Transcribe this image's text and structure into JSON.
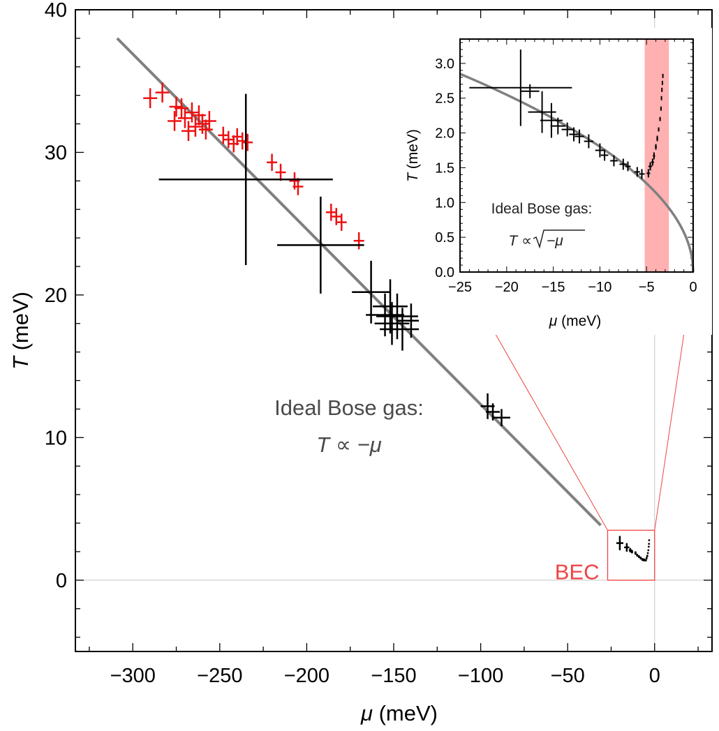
{
  "chart_data": [
    {
      "type": "scatter",
      "title": "",
      "xlabel": "μ (meV)",
      "ylabel": "T (meV)",
      "xlabel_symbol": "μ",
      "xlabel_unit": " (meV)",
      "ylabel_symbol": "T",
      "ylabel_unit": " (meV)",
      "xlim": [
        -333,
        33
      ],
      "ylim": [
        -5,
        40
      ],
      "x_ticks": [
        -300,
        -250,
        -200,
        -150,
        -100,
        -50,
        0
      ],
      "x_tick_labels": [
        "−300",
        "−250",
        "−200",
        "−150",
        "−100",
        "−50",
        "0"
      ],
      "y_ticks": [
        0,
        10,
        20,
        30,
        40
      ],
      "y_tick_labels": [
        "0",
        "10",
        "20",
        "30",
        "40"
      ],
      "grid": false,
      "colors": {
        "red_series": "#ee1111",
        "black_series": "#000000",
        "fit": "#808080",
        "bec": "#ee4444"
      },
      "fit_line": {
        "name": "Ideal Bose gas: T ∝ −μ",
        "points": [
          [
            -309,
            38
          ],
          [
            -31,
            3.85
          ]
        ]
      },
      "annotation": {
        "line1": "Ideal Bose gas:",
        "line2_symbol": "T",
        "line2_rest": " ∝ −μ"
      },
      "bec_box": {
        "label": "BEC",
        "x_range": [
          -27,
          0
        ],
        "y_range": [
          0,
          3.5
        ]
      },
      "series": [
        {
          "name": "red measurements",
          "color": "#ee1111",
          "points": [
            {
              "x": -290,
              "y": 33.8,
              "xerr": 4,
              "yerr": 0.7
            },
            {
              "x": -283,
              "y": 34.2,
              "xerr": 4,
              "yerr": 0.7
            },
            {
              "x": -275,
              "y": 33.2,
              "xerr": 4,
              "yerr": 0.7
            },
            {
              "x": -276,
              "y": 32.2,
              "xerr": 4,
              "yerr": 0.7
            },
            {
              "x": -272,
              "y": 33.1,
              "xerr": 4,
              "yerr": 0.7
            },
            {
              "x": -270,
              "y": 32.4,
              "xerr": 4,
              "yerr": 0.7
            },
            {
              "x": -268,
              "y": 31.5,
              "xerr": 4,
              "yerr": 0.7
            },
            {
              "x": -266,
              "y": 32.8,
              "xerr": 4,
              "yerr": 0.7
            },
            {
              "x": -264,
              "y": 31.8,
              "xerr": 4,
              "yerr": 0.7
            },
            {
              "x": -262,
              "y": 32.6,
              "xerr": 4,
              "yerr": 0.7
            },
            {
              "x": -260,
              "y": 32.0,
              "xerr": 4,
              "yerr": 0.7
            },
            {
              "x": -258,
              "y": 31.6,
              "xerr": 4,
              "yerr": 0.7
            },
            {
              "x": -256,
              "y": 32.2,
              "xerr": 4,
              "yerr": 0.7
            },
            {
              "x": -248,
              "y": 31.2,
              "xerr": 3,
              "yerr": 0.6
            },
            {
              "x": -245,
              "y": 30.9,
              "xerr": 3,
              "yerr": 0.6
            },
            {
              "x": -242,
              "y": 30.6,
              "xerr": 3,
              "yerr": 0.6
            },
            {
              "x": -240,
              "y": 31.1,
              "xerr": 3,
              "yerr": 0.6
            },
            {
              "x": -237,
              "y": 30.8,
              "xerr": 3,
              "yerr": 0.6
            },
            {
              "x": -234,
              "y": 30.7,
              "xerr": 3,
              "yerr": 0.6
            },
            {
              "x": -220,
              "y": 29.3,
              "xerr": 3,
              "yerr": 0.6
            },
            {
              "x": -215,
              "y": 28.6,
              "xerr": 3,
              "yerr": 0.6
            },
            {
              "x": -207,
              "y": 28.0,
              "xerr": 3,
              "yerr": 0.6
            },
            {
              "x": -205,
              "y": 27.6,
              "xerr": 3,
              "yerr": 0.6
            },
            {
              "x": -186,
              "y": 25.8,
              "xerr": 3,
              "yerr": 0.6
            },
            {
              "x": -183,
              "y": 25.5,
              "xerr": 3,
              "yerr": 0.6
            },
            {
              "x": -180,
              "y": 25.1,
              "xerr": 3,
              "yerr": 0.6
            },
            {
              "x": -170,
              "y": 23.8,
              "xerr": 3,
              "yerr": 0.6
            }
          ]
        },
        {
          "name": "black measurements",
          "color": "#000000",
          "points": [
            {
              "x": -235,
              "y": 28.1,
              "xerr": 50,
              "yerr": 6.0
            },
            {
              "x": -192,
              "y": 23.5,
              "xerr": 25,
              "yerr": 3.4
            },
            {
              "x": -163,
              "y": 20.2,
              "xerr": 11,
              "yerr": 2.2
            },
            {
              "x": -155,
              "y": 18.6,
              "xerr": 11,
              "yerr": 1.5
            },
            {
              "x": -152,
              "y": 19.2,
              "xerr": 10,
              "yerr": 1.9
            },
            {
              "x": -151,
              "y": 18.0,
              "xerr": 10,
              "yerr": 1.5
            },
            {
              "x": -148,
              "y": 18.5,
              "xerr": 12,
              "yerr": 1.6
            },
            {
              "x": -145,
              "y": 17.6,
              "xerr": 13,
              "yerr": 1.5
            },
            {
              "x": -140,
              "y": 18.2,
              "xerr": 8,
              "yerr": 1.2
            },
            {
              "x": -96,
              "y": 12.2,
              "xerr": 4,
              "yerr": 0.9
            },
            {
              "x": -93,
              "y": 11.8,
              "xerr": 4,
              "yerr": 0.6
            },
            {
              "x": -88,
              "y": 11.4,
              "xerr": 5,
              "yerr": 0.6
            },
            {
              "x": -20,
              "y": 2.6,
              "xerr": 2,
              "yerr": 0.5
            },
            {
              "x": -16,
              "y": 2.3,
              "xerr": 1.5,
              "yerr": 0.3
            },
            {
              "x": -14,
              "y": 2.1,
              "xerr": 0.8,
              "yerr": 0.15
            },
            {
              "x": -13,
              "y": 2.0,
              "xerr": 0.6,
              "yerr": 0.12
            },
            {
              "x": -11,
              "y": 1.9,
              "xerr": 0.6,
              "yerr": 0.12
            },
            {
              "x": -10,
              "y": 1.75,
              "xerr": 0.5,
              "yerr": 0.1
            },
            {
              "x": -9,
              "y": 1.65,
              "xerr": 0.5,
              "yerr": 0.1
            },
            {
              "x": -8,
              "y": 1.55,
              "xerr": 0.5,
              "yerr": 0.1
            },
            {
              "x": -7,
              "y": 1.45,
              "xerr": 0.5,
              "yerr": 0.1
            },
            {
              "x": -6,
              "y": 1.42,
              "xerr": 0.5,
              "yerr": 0.1
            },
            {
              "x": -5,
              "y": 1.4,
              "xerr": 0.3,
              "yerr": 0.08
            },
            {
              "x": -4.6,
              "y": 1.55,
              "xerr": 0.2,
              "yerr": 0.08
            },
            {
              "x": -4.2,
              "y": 1.7,
              "xerr": 0.2,
              "yerr": 0.08
            },
            {
              "x": -3.9,
              "y": 1.9,
              "xerr": 0.1,
              "yerr": 0.06
            },
            {
              "x": -3.6,
              "y": 2.1,
              "xerr": 0.1,
              "yerr": 0.06
            },
            {
              "x": -3.4,
              "y": 2.35,
              "xerr": 0.1,
              "yerr": 0.06
            },
            {
              "x": -3.25,
              "y": 2.55,
              "xerr": 0.1,
              "yerr": 0.06
            },
            {
              "x": -3.15,
              "y": 2.8,
              "xerr": 0.1,
              "yerr": 0.06
            }
          ]
        }
      ]
    },
    {
      "type": "scatter",
      "title": "",
      "xlabel": "μ (meV)",
      "ylabel": "T (meV)",
      "xlabel_symbol": "μ",
      "xlabel_unit": " (meV)",
      "ylabel_symbol": "T",
      "ylabel_unit": " (meV)",
      "xlim": [
        -25,
        0
      ],
      "ylim": [
        0,
        3.35
      ],
      "x_ticks": [
        -25,
        -20,
        -15,
        -10,
        -5,
        0
      ],
      "x_tick_labels": [
        "−25",
        "−20",
        "−15",
        "−10",
        "−5",
        "0"
      ],
      "y_ticks": [
        0,
        0.5,
        1.0,
        1.5,
        2.0,
        2.5,
        3.0
      ],
      "y_tick_labels": [
        "0.0",
        "0.5",
        "1.0",
        "1.5",
        "2.0",
        "2.5",
        "3.0"
      ],
      "grid": false,
      "fit_curve": {
        "name": "Ideal Bose gas: T ∝ √(−μ)",
        "coefficient": 0.57,
        "x_range": [
          -25,
          0
        ]
      },
      "annotation": {
        "line1": "Ideal Bose gas:",
        "line2_symbol": "T",
        "line2_rest": " ∝ ",
        "sqrt_arg": "−μ"
      },
      "highlight_band": {
        "x_range": [
          -5.2,
          -2.6
        ],
        "color": "#ffb0b0"
      },
      "series": [
        {
          "name": "black measurements",
          "color": "#000000",
          "points": [
            {
              "x": -18.5,
              "y": 2.65,
              "xerr": 5.5,
              "yerr": 0.55
            },
            {
              "x": -17.5,
              "y": 2.6,
              "xerr": 1.0,
              "yerr": 0.1
            },
            {
              "x": -16.2,
              "y": 2.3,
              "xerr": 1.5,
              "yerr": 0.3
            },
            {
              "x": -15.2,
              "y": 2.18,
              "xerr": 1.2,
              "yerr": 0.25
            },
            {
              "x": -14.5,
              "y": 2.1,
              "xerr": 0.8,
              "yerr": 0.12
            },
            {
              "x": -13.5,
              "y": 2.05,
              "xerr": 0.6,
              "yerr": 0.1
            },
            {
              "x": -12.8,
              "y": 1.98,
              "xerr": 0.5,
              "yerr": 0.1
            },
            {
              "x": -12.2,
              "y": 1.95,
              "xerr": 0.5,
              "yerr": 0.1
            },
            {
              "x": -11.2,
              "y": 1.88,
              "xerr": 0.5,
              "yerr": 0.1
            },
            {
              "x": -10.0,
              "y": 1.75,
              "xerr": 0.5,
              "yerr": 0.1
            },
            {
              "x": -9.5,
              "y": 1.68,
              "xerr": 0.4,
              "yerr": 0.08
            },
            {
              "x": -8.5,
              "y": 1.6,
              "xerr": 0.4,
              "yerr": 0.08
            },
            {
              "x": -7.5,
              "y": 1.55,
              "xerr": 0.4,
              "yerr": 0.08
            },
            {
              "x": -7.0,
              "y": 1.52,
              "xerr": 0.3,
              "yerr": 0.07
            },
            {
              "x": -6.0,
              "y": 1.44,
              "xerr": 0.3,
              "yerr": 0.07
            },
            {
              "x": -5.5,
              "y": 1.41,
              "xerr": 0.3,
              "yerr": 0.07
            },
            {
              "x": -4.8,
              "y": 1.42,
              "xerr": 0.2,
              "yerr": 0.06
            },
            {
              "x": -4.6,
              "y": 1.52,
              "xerr": 0.2,
              "yerr": 0.06
            },
            {
              "x": -4.35,
              "y": 1.58,
              "xerr": 0.15,
              "yerr": 0.05
            },
            {
              "x": -4.2,
              "y": 1.67,
              "xerr": 0.12,
              "yerr": 0.05
            },
            {
              "x": -4.0,
              "y": 1.8,
              "xerr": 0.1,
              "yerr": 0.04
            },
            {
              "x": -3.85,
              "y": 1.92,
              "xerr": 0.1,
              "yerr": 0.04
            },
            {
              "x": -3.7,
              "y": 2.05,
              "xerr": 0.08,
              "yerr": 0.03
            },
            {
              "x": -3.55,
              "y": 2.2,
              "xerr": 0.08,
              "yerr": 0.03
            },
            {
              "x": -3.45,
              "y": 2.35,
              "xerr": 0.06,
              "yerr": 0.03
            },
            {
              "x": -3.4,
              "y": 2.5,
              "xerr": 0.06,
              "yerr": 0.03
            },
            {
              "x": -3.35,
              "y": 2.62,
              "xerr": 0.05,
              "yerr": 0.03
            },
            {
              "x": -3.3,
              "y": 2.72,
              "xerr": 0.05,
              "yerr": 0.03
            },
            {
              "x": -3.25,
              "y": 2.82,
              "xerr": 0.05,
              "yerr": 0.03
            }
          ]
        }
      ]
    }
  ]
}
